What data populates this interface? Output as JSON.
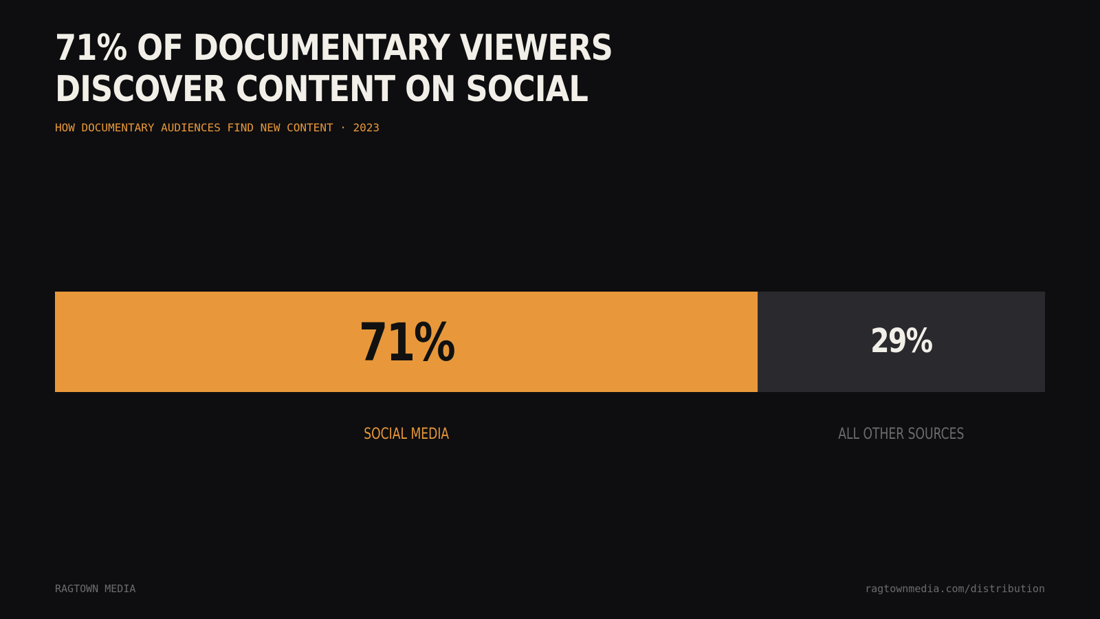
{
  "title_lines": [
    "71% OF DOCUMENTARY VIEWERS",
    "DISCOVER CONTENT ON SOCIAL"
  ],
  "subtitle": "HOW DOCUMENTARY AUDIENCES FIND NEW CONTENT · 2023",
  "colors": {
    "background": "#0e0e10",
    "title": "#f2efe8",
    "accent": "#e8983a",
    "secondary_bar": "#2a2a2e",
    "primary_value_text": "#111111",
    "secondary_value_text": "#f2efe8",
    "secondary_label": "#6c6c70",
    "footer": "#6c6c70"
  },
  "chart_data": {
    "type": "bar",
    "orientation": "horizontal-stacked",
    "title": "71% OF DOCUMENTARY VIEWERS DISCOVER CONTENT ON SOCIAL",
    "subtitle": "HOW DOCUMENTARY AUDIENCES FIND NEW CONTENT · 2023",
    "categories": [
      "SOCIAL MEDIA",
      "ALL OTHER SOURCES"
    ],
    "values": [
      71,
      29
    ],
    "value_labels": [
      "71%",
      "29%"
    ],
    "unit": "%",
    "xlim": [
      0,
      100
    ],
    "grid": false,
    "legend": "none"
  },
  "footer": {
    "left": "RAGTOWN MEDIA",
    "right": "ragtownmedia.com/distribution"
  }
}
